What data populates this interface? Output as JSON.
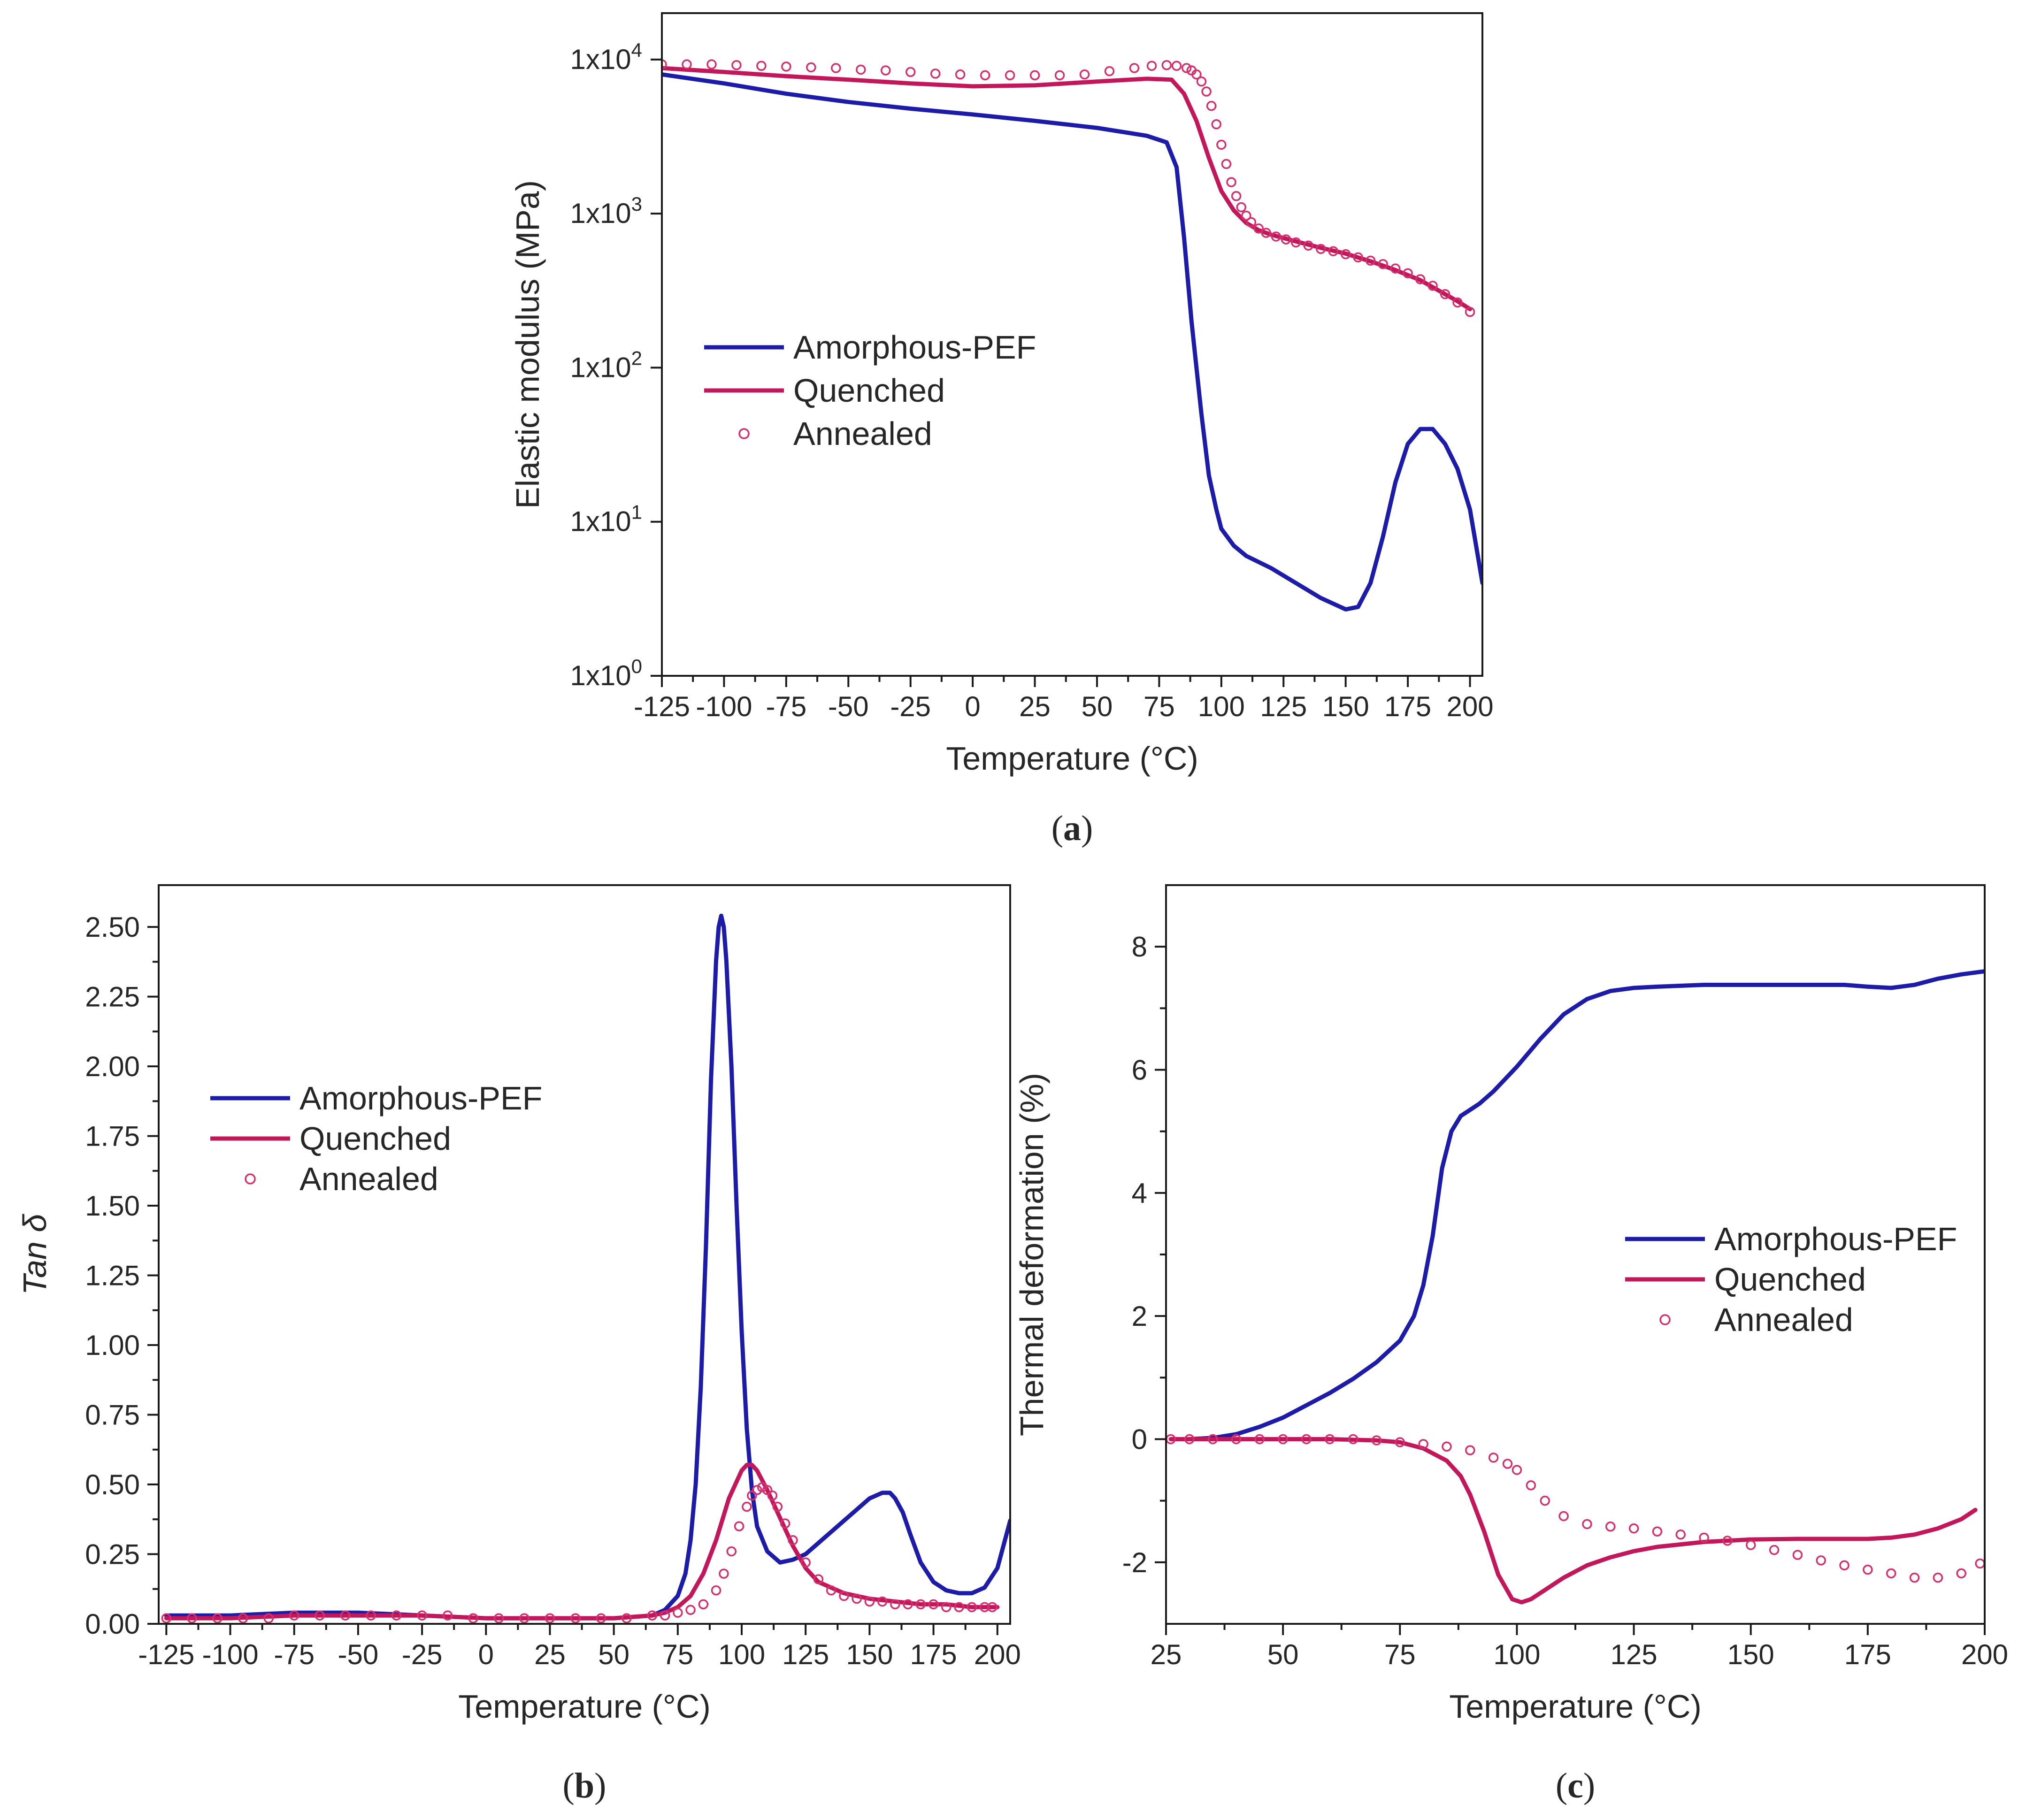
{
  "colors": {
    "amorphous": "#1c1ca8",
    "quenched": "#c2185b",
    "annealed": "#d3306e"
  },
  "chart_data": [
    {
      "id": "a",
      "type": "line",
      "panel_label": "a",
      "xlabel": "Temperature (°C)",
      "ylabel": "Elastic modulus (MPa)",
      "yscale": "log",
      "xlim": [
        -125,
        205
      ],
      "ylim": [
        1,
        20000
      ],
      "xticks": [
        -125,
        -100,
        -75,
        -50,
        -25,
        0,
        25,
        50,
        75,
        100,
        125,
        150,
        175,
        200
      ],
      "xtick_labels": [
        "-125",
        "-100",
        "-75",
        "-50",
        "-25",
        "0",
        "25",
        "50",
        "75",
        "100",
        "125",
        "150",
        "175",
        "200"
      ],
      "yticks": [
        1,
        10,
        100,
        1000,
        10000
      ],
      "ytick_labels": [
        {
          "base": "1x10",
          "exp": "0"
        },
        {
          "base": "1x10",
          "exp": "1"
        },
        {
          "base": "1x10",
          "exp": "2"
        },
        {
          "base": "1x10",
          "exp": "3"
        },
        {
          "base": "1x10",
          "exp": "4"
        }
      ],
      "legend_position": "center-left",
      "series": [
        {
          "name": "Amorphous-PEF",
          "style": "line",
          "color": "#1c1ca8",
          "x": [
            -125,
            -100,
            -75,
            -50,
            -25,
            0,
            25,
            50,
            70,
            78,
            82,
            85,
            88,
            90,
            92,
            95,
            98,
            100,
            105,
            110,
            120,
            130,
            140,
            150,
            155,
            160,
            165,
            170,
            175,
            180,
            185,
            190,
            195,
            200,
            205
          ],
          "y": [
            8000,
            7000,
            6000,
            5300,
            4800,
            4400,
            4000,
            3600,
            3200,
            2900,
            2000,
            700,
            200,
            100,
            50,
            20,
            12,
            9,
            7,
            6,
            5,
            4,
            3.2,
            2.7,
            2.8,
            4,
            8,
            18,
            32,
            40,
            40,
            32,
            22,
            12,
            4
          ]
        },
        {
          "name": "Quenched",
          "style": "line",
          "color": "#c2185b",
          "x": [
            -125,
            -100,
            -75,
            -50,
            -25,
            0,
            25,
            50,
            70,
            80,
            85,
            90,
            95,
            100,
            105,
            110,
            115,
            120,
            130,
            140,
            150,
            160,
            170,
            180,
            190,
            195,
            200
          ],
          "y": [
            8800,
            8300,
            7800,
            7400,
            7000,
            6700,
            6800,
            7200,
            7500,
            7400,
            6000,
            4000,
            2300,
            1400,
            1050,
            870,
            780,
            730,
            660,
            600,
            550,
            490,
            430,
            370,
            300,
            270,
            240
          ]
        },
        {
          "name": "Annealed",
          "style": "markers",
          "color": "#d3306e",
          "x": [
            -125,
            -115,
            -105,
            -95,
            -85,
            -75,
            -65,
            -55,
            -45,
            -35,
            -25,
            -15,
            -5,
            5,
            15,
            25,
            35,
            45,
            55,
            65,
            72,
            78,
            82,
            86,
            88,
            90,
            92,
            94,
            96,
            98,
            100,
            102,
            104,
            106,
            108,
            110,
            112,
            115,
            118,
            122,
            126,
            130,
            135,
            140,
            145,
            150,
            155,
            160,
            165,
            170,
            175,
            180,
            185,
            190,
            195,
            200
          ],
          "y": [
            9300,
            9300,
            9300,
            9200,
            9100,
            9000,
            8900,
            8800,
            8600,
            8500,
            8300,
            8100,
            8000,
            7900,
            7900,
            7900,
            7900,
            8000,
            8400,
            8800,
            9100,
            9200,
            9100,
            8800,
            8500,
            8000,
            7200,
            6200,
            5000,
            3800,
            2800,
            2100,
            1600,
            1300,
            1100,
            970,
            880,
            800,
            750,
            710,
            680,
            650,
            620,
            590,
            570,
            545,
            520,
            495,
            470,
            440,
            410,
            375,
            340,
            300,
            265,
            230
          ]
        }
      ]
    },
    {
      "id": "b",
      "type": "line",
      "panel_label": "b",
      "xlabel": "Temperature (°C)",
      "ylabel": "Tan δ",
      "xlim": [
        -128,
        205
      ],
      "ylim": [
        0,
        2.65
      ],
      "xticks": [
        -125,
        -100,
        -75,
        -50,
        -25,
        0,
        25,
        50,
        75,
        100,
        125,
        150,
        175,
        200
      ],
      "xtick_labels": [
        "-125",
        "-100",
        "-75",
        "-50",
        "-25",
        "0",
        "25",
        "50",
        "75",
        "100",
        "125",
        "150",
        "175",
        "200"
      ],
      "yticks": [
        0,
        0.25,
        0.5,
        0.75,
        1,
        1.25,
        1.5,
        1.75,
        2,
        2.25,
        2.5
      ],
      "ytick_labels": [
        "0.00",
        "0.25",
        "0.50",
        "0.75",
        "1.00",
        "1.25",
        "1.50",
        "1.75",
        "2.00",
        "2.25",
        "2.50"
      ],
      "legend_position": "upper-left",
      "series": [
        {
          "name": "Amorphous-PEF",
          "style": "line",
          "color": "#1c1ca8",
          "x": [
            -125,
            -100,
            -75,
            -50,
            -25,
            0,
            25,
            50,
            65,
            70,
            75,
            78,
            80,
            82,
            84,
            86,
            88,
            90,
            91,
            92,
            93,
            94,
            96,
            98,
            100,
            102,
            104,
            106,
            110,
            115,
            120,
            125,
            130,
            135,
            140,
            145,
            150,
            155,
            158,
            160,
            163,
            166,
            170,
            175,
            180,
            185,
            190,
            195,
            200,
            205
          ],
          "y": [
            0.03,
            0.03,
            0.04,
            0.04,
            0.03,
            0.02,
            0.02,
            0.02,
            0.03,
            0.05,
            0.1,
            0.18,
            0.3,
            0.5,
            0.85,
            1.35,
            1.95,
            2.38,
            2.5,
            2.54,
            2.5,
            2.38,
            2.0,
            1.5,
            1.05,
            0.7,
            0.48,
            0.35,
            0.26,
            0.22,
            0.23,
            0.25,
            0.29,
            0.33,
            0.37,
            0.41,
            0.45,
            0.47,
            0.47,
            0.45,
            0.4,
            0.32,
            0.22,
            0.15,
            0.12,
            0.11,
            0.11,
            0.13,
            0.2,
            0.37
          ]
        },
        {
          "name": "Quenched",
          "style": "line",
          "color": "#c2185b",
          "x": [
            -125,
            -100,
            -75,
            -50,
            -25,
            0,
            25,
            50,
            65,
            70,
            75,
            80,
            85,
            90,
            95,
            100,
            102,
            104,
            106,
            110,
            115,
            120,
            125,
            130,
            140,
            150,
            160,
            170,
            180,
            190,
            200
          ],
          "y": [
            0.02,
            0.02,
            0.03,
            0.03,
            0.03,
            0.02,
            0.02,
            0.02,
            0.03,
            0.04,
            0.06,
            0.1,
            0.18,
            0.3,
            0.45,
            0.55,
            0.57,
            0.57,
            0.55,
            0.48,
            0.38,
            0.28,
            0.2,
            0.15,
            0.11,
            0.09,
            0.08,
            0.07,
            0.07,
            0.06,
            0.06
          ]
        },
        {
          "name": "Annealed",
          "style": "markers",
          "color": "#d3306e",
          "x": [
            -125,
            -115,
            -105,
            -95,
            -85,
            -75,
            -65,
            -55,
            -45,
            -35,
            -25,
            -15,
            -5,
            5,
            15,
            25,
            35,
            45,
            55,
            65,
            70,
            75,
            80,
            85,
            90,
            93,
            96,
            99,
            102,
            104,
            106,
            108,
            110,
            112,
            114,
            117,
            120,
            125,
            130,
            135,
            140,
            145,
            150,
            155,
            160,
            165,
            170,
            175,
            180,
            185,
            190,
            195,
            198
          ],
          "y": [
            0.02,
            0.02,
            0.02,
            0.02,
            0.02,
            0.03,
            0.03,
            0.03,
            0.03,
            0.03,
            0.03,
            0.03,
            0.02,
            0.02,
            0.02,
            0.02,
            0.02,
            0.02,
            0.02,
            0.03,
            0.03,
            0.04,
            0.05,
            0.07,
            0.12,
            0.18,
            0.26,
            0.35,
            0.42,
            0.46,
            0.48,
            0.49,
            0.48,
            0.46,
            0.42,
            0.36,
            0.3,
            0.22,
            0.16,
            0.12,
            0.1,
            0.09,
            0.08,
            0.08,
            0.07,
            0.07,
            0.07,
            0.07,
            0.06,
            0.06,
            0.06,
            0.06,
            0.06
          ]
        }
      ]
    },
    {
      "id": "c",
      "type": "line",
      "panel_label": "c",
      "xlabel": "Temperature (°C)",
      "ylabel": "Thermal deformation (%)",
      "xlim": [
        25,
        200
      ],
      "ylim": [
        -3,
        9
      ],
      "xticks": [
        25,
        50,
        75,
        100,
        125,
        150,
        175,
        200
      ],
      "xtick_labels": [
        "25",
        "50",
        "75",
        "100",
        "125",
        "150",
        "175",
        "200"
      ],
      "yticks": [
        -2,
        0,
        2,
        4,
        6,
        8
      ],
      "ytick_labels": [
        "-2",
        "0",
        "2",
        "4",
        "6",
        "8"
      ],
      "legend_position": "center-right",
      "series": [
        {
          "name": "Amorphous-PEF",
          "style": "line",
          "color": "#1c1ca8",
          "x": [
            30,
            35,
            40,
            45,
            50,
            55,
            60,
            65,
            70,
            75,
            78,
            80,
            82,
            84,
            86,
            88,
            90,
            92,
            95,
            100,
            105,
            110,
            115,
            120,
            125,
            130,
            140,
            150,
            160,
            170,
            175,
            180,
            185,
            190,
            195,
            200
          ],
          "y": [
            0,
            0.02,
            0.08,
            0.2,
            0.35,
            0.55,
            0.75,
            0.98,
            1.25,
            1.6,
            2.0,
            2.5,
            3.3,
            4.4,
            5.0,
            5.25,
            5.35,
            5.45,
            5.65,
            6.05,
            6.5,
            6.9,
            7.15,
            7.28,
            7.33,
            7.35,
            7.38,
            7.38,
            7.38,
            7.38,
            7.35,
            7.33,
            7.38,
            7.48,
            7.55,
            7.6
          ]
        },
        {
          "name": "Quenched",
          "style": "line",
          "color": "#c2185b",
          "x": [
            26,
            40,
            50,
            60,
            70,
            75,
            80,
            85,
            88,
            90,
            93,
            96,
            99,
            101,
            103,
            106,
            110,
            115,
            120,
            125,
            130,
            140,
            150,
            160,
            170,
            175,
            180,
            185,
            190,
            195,
            198
          ],
          "y": [
            0,
            0,
            0,
            0,
            -0.02,
            -0.05,
            -0.15,
            -0.35,
            -0.6,
            -0.9,
            -1.5,
            -2.2,
            -2.6,
            -2.65,
            -2.6,
            -2.45,
            -2.25,
            -2.05,
            -1.92,
            -1.82,
            -1.75,
            -1.67,
            -1.63,
            -1.62,
            -1.62,
            -1.62,
            -1.6,
            -1.55,
            -1.45,
            -1.3,
            -1.15
          ]
        },
        {
          "name": "Annealed",
          "style": "markers",
          "color": "#d3306e",
          "x": [
            26,
            30,
            35,
            40,
            45,
            50,
            55,
            60,
            65,
            70,
            75,
            80,
            85,
            90,
            95,
            98,
            100,
            103,
            106,
            110,
            115,
            120,
            125,
            130,
            135,
            140,
            145,
            150,
            155,
            160,
            165,
            170,
            175,
            180,
            185,
            190,
            195,
            199
          ],
          "y": [
            0,
            0,
            0,
            0,
            0,
            0,
            0,
            0,
            0,
            -0.02,
            -0.05,
            -0.08,
            -0.12,
            -0.18,
            -0.3,
            -0.4,
            -0.5,
            -0.75,
            -1.0,
            -1.25,
            -1.38,
            -1.42,
            -1.45,
            -1.5,
            -1.55,
            -1.6,
            -1.65,
            -1.72,
            -1.8,
            -1.88,
            -1.97,
            -2.05,
            -2.12,
            -2.18,
            -2.25,
            -2.25,
            -2.18,
            -2.02
          ]
        }
      ]
    }
  ]
}
